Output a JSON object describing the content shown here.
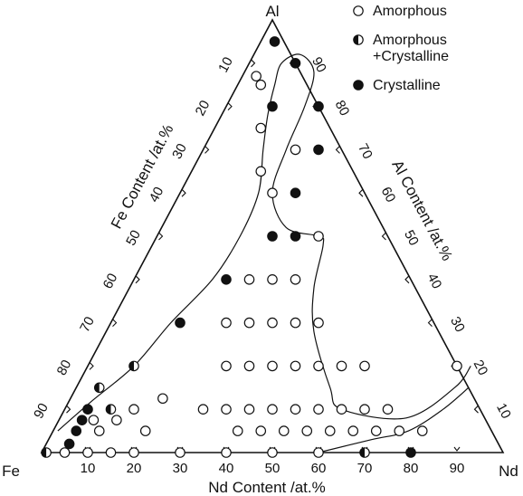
{
  "chart_data": {
    "type": "scatter",
    "subtype": "ternary",
    "corners": {
      "top": "Al",
      "left": "Fe",
      "right": "Nd"
    },
    "axis_titles": {
      "left": "Fe Content /at.%",
      "right": "Al Content /at.%",
      "bottom": "Nd Content /at.%"
    },
    "ticks": {
      "bottom": [
        "10",
        "20",
        "30",
        "40",
        "50",
        "60",
        "70",
        "80",
        "90"
      ],
      "left": [
        "10",
        "20",
        "30",
        "40",
        "50",
        "60",
        "70",
        "80",
        "90"
      ],
      "right": [
        "10",
        "20",
        "30",
        "40",
        "50",
        "60",
        "70",
        "80",
        "90"
      ]
    },
    "legend": {
      "position": "top-right",
      "entries": [
        {
          "key": "amorphous",
          "label_lines": [
            "Amorphous"
          ]
        },
        {
          "key": "mixed",
          "label_lines": [
            "Amorphous",
            "+Crystalline"
          ]
        },
        {
          "key": "crystalline",
          "label_lines": [
            "Crystalline"
          ]
        }
      ]
    },
    "points": [
      {
        "nd": 1,
        "al": 0,
        "phase": "mixed"
      },
      {
        "nd": 5,
        "al": 0,
        "phase": "amorphous"
      },
      {
        "nd": 10,
        "al": 0,
        "phase": "amorphous"
      },
      {
        "nd": 15,
        "al": 0,
        "phase": "amorphous"
      },
      {
        "nd": 20,
        "al": 0,
        "phase": "amorphous"
      },
      {
        "nd": 30,
        "al": 0,
        "phase": "amorphous"
      },
      {
        "nd": 40,
        "al": 0,
        "phase": "amorphous"
      },
      {
        "nd": 50,
        "al": 0,
        "phase": "amorphous"
      },
      {
        "nd": 60,
        "al": 0,
        "phase": "amorphous"
      },
      {
        "nd": 70,
        "al": 0,
        "phase": "mixed"
      },
      {
        "nd": 80,
        "al": 0,
        "phase": "crystalline"
      },
      {
        "nd": 5,
        "al": 2,
        "phase": "crystalline"
      },
      {
        "nd": 5,
        "al": 5,
        "phase": "crystalline"
      },
      {
        "nd": 5,
        "al": 7.5,
        "phase": "crystalline"
      },
      {
        "nd": 5,
        "al": 10,
        "phase": "crystalline"
      },
      {
        "nd": 5,
        "al": 15,
        "phase": "mixed"
      },
      {
        "nd": 7.5,
        "al": 7.5,
        "phase": "amorphous"
      },
      {
        "nd": 10,
        "al": 5,
        "phase": "amorphous"
      },
      {
        "nd": 10,
        "al": 10,
        "phase": "mixed"
      },
      {
        "nd": 12.5,
        "al": 7.5,
        "phase": "amorphous"
      },
      {
        "nd": 15,
        "al": 10,
        "phase": "amorphous"
      },
      {
        "nd": 20,
        "al": 5,
        "phase": "amorphous"
      },
      {
        "nd": 20,
        "al": 12.5,
        "phase": "amorphous"
      },
      {
        "nd": 10,
        "al": 20,
        "phase": "mixed"
      },
      {
        "nd": 15,
        "al": 30,
        "phase": "crystalline"
      },
      {
        "nd": 20,
        "al": 40,
        "phase": "crystalline"
      },
      {
        "nd": 25,
        "al": 50,
        "phase": "crystalline"
      },
      {
        "nd": 25,
        "al": 60,
        "phase": "crystalline"
      },
      {
        "nd": 25,
        "al": 70,
        "phase": "crystalline"
      },
      {
        "nd": 20,
        "al": 80,
        "phase": "crystalline"
      },
      {
        "nd": 10,
        "al": 90,
        "phase": "crystalline"
      },
      {
        "nd": 3,
        "al": 95,
        "phase": "crystalline"
      },
      {
        "nd": 3,
        "al": 87,
        "phase": "amorphous"
      },
      {
        "nd": 5,
        "al": 85,
        "phase": "amorphous"
      },
      {
        "nd": 10,
        "al": 80,
        "phase": "crystalline"
      },
      {
        "nd": 10,
        "al": 75,
        "phase": "amorphous"
      },
      {
        "nd": 15,
        "al": 65,
        "phase": "amorphous"
      },
      {
        "nd": 20,
        "al": 60,
        "phase": "amorphous"
      },
      {
        "nd": 30,
        "al": 50,
        "phase": "crystalline"
      },
      {
        "nd": 35,
        "al": 50,
        "phase": "amorphous"
      },
      {
        "nd": 20,
        "al": 70,
        "phase": "amorphous"
      },
      {
        "nd": 25,
        "al": 40,
        "phase": "amorphous"
      },
      {
        "nd": 30,
        "al": 40,
        "phase": "amorphous"
      },
      {
        "nd": 35,
        "al": 40,
        "phase": "amorphous"
      },
      {
        "nd": 25,
        "al": 30,
        "phase": "amorphous"
      },
      {
        "nd": 30,
        "al": 30,
        "phase": "amorphous"
      },
      {
        "nd": 35,
        "al": 30,
        "phase": "amorphous"
      },
      {
        "nd": 40,
        "al": 30,
        "phase": "amorphous"
      },
      {
        "nd": 45,
        "al": 30,
        "phase": "amorphous"
      },
      {
        "nd": 30,
        "al": 20,
        "phase": "amorphous"
      },
      {
        "nd": 35,
        "al": 20,
        "phase": "amorphous"
      },
      {
        "nd": 40,
        "al": 20,
        "phase": "amorphous"
      },
      {
        "nd": 45,
        "al": 20,
        "phase": "amorphous"
      },
      {
        "nd": 50,
        "al": 20,
        "phase": "amorphous"
      },
      {
        "nd": 55,
        "al": 20,
        "phase": "amorphous"
      },
      {
        "nd": 60,
        "al": 20,
        "phase": "amorphous"
      },
      {
        "nd": 30,
        "al": 10,
        "phase": "amorphous"
      },
      {
        "nd": 35,
        "al": 10,
        "phase": "amorphous"
      },
      {
        "nd": 40,
        "al": 10,
        "phase": "amorphous"
      },
      {
        "nd": 45,
        "al": 10,
        "phase": "amorphous"
      },
      {
        "nd": 50,
        "al": 10,
        "phase": "amorphous"
      },
      {
        "nd": 55,
        "al": 10,
        "phase": "amorphous"
      },
      {
        "nd": 60,
        "al": 10,
        "phase": "amorphous"
      },
      {
        "nd": 65,
        "al": 10,
        "phase": "amorphous"
      },
      {
        "nd": 70,
        "al": 10,
        "phase": "amorphous"
      },
      {
        "nd": 40,
        "al": 5,
        "phase": "amorphous"
      },
      {
        "nd": 45,
        "al": 5,
        "phase": "amorphous"
      },
      {
        "nd": 50,
        "al": 5,
        "phase": "amorphous"
      },
      {
        "nd": 55,
        "al": 5,
        "phase": "amorphous"
      },
      {
        "nd": 60,
        "al": 5,
        "phase": "amorphous"
      },
      {
        "nd": 65,
        "al": 5,
        "phase": "amorphous"
      },
      {
        "nd": 70,
        "al": 5,
        "phase": "amorphous"
      },
      {
        "nd": 75,
        "al": 5,
        "phase": "amorphous"
      },
      {
        "nd": 80,
        "al": 5,
        "phase": "amorphous"
      },
      {
        "nd": 80,
        "al": 20,
        "phase": "amorphous"
      }
    ],
    "boundaries": [
      {
        "name": "outer-glass-forming-boundary",
        "path": [
          [
            1,
            5
          ],
          [
            5,
            12
          ],
          [
            10,
            20
          ],
          [
            13,
            30
          ],
          [
            17,
            40
          ],
          [
            18,
            50
          ],
          [
            17,
            60
          ],
          [
            13,
            70
          ],
          [
            10,
            78
          ],
          [
            8,
            85
          ],
          [
            7,
            90
          ],
          [
            10,
            92
          ],
          [
            15,
            88
          ],
          [
            17,
            80
          ],
          [
            18,
            70
          ],
          [
            20,
            60
          ],
          [
            27,
            52
          ],
          [
            35,
            50
          ],
          [
            37,
            48
          ],
          [
            40,
            38
          ],
          [
            45,
            28
          ],
          [
            55,
            15
          ],
          [
            60,
            10
          ],
          [
            75,
            8
          ],
          [
            82,
            15
          ],
          [
            83,
            20
          ]
        ],
        "style": "solid"
      },
      {
        "name": "bottom-boundary",
        "path": [
          [
            60,
            0
          ],
          [
            70,
            3
          ],
          [
            77,
            5
          ],
          [
            82,
            10
          ],
          [
            85,
            15
          ]
        ],
        "style": "solid"
      }
    ]
  }
}
